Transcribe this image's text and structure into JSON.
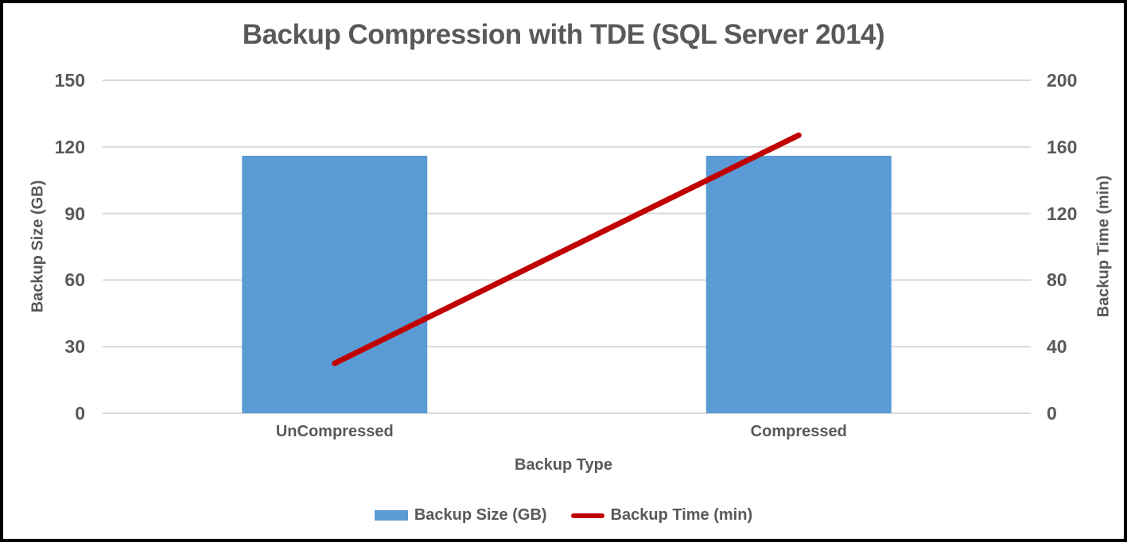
{
  "title": "Backup Compression with TDE (SQL Server 2014)",
  "colors": {
    "bar": "#5B9BD5",
    "line": "#C00000",
    "text": "#595959",
    "gridline": "#D9D9D9"
  },
  "chart_data": {
    "type": "bar+line",
    "title": "Backup Compression with TDE (SQL Server 2014)",
    "categories": [
      "UnCompressed",
      "Compressed"
    ],
    "series": [
      {
        "name": "Backup Size (GB)",
        "type": "bar",
        "axis": "left",
        "values": [
          116,
          116
        ]
      },
      {
        "name": "Backup Time (min)",
        "type": "line",
        "axis": "right",
        "values": [
          30,
          167
        ]
      }
    ],
    "x_axis": {
      "title": "Backup Type"
    },
    "left_axis": {
      "title": "Backup Size (GB)",
      "min": 0,
      "max": 150,
      "ticks": [
        0,
        30,
        60,
        90,
        120,
        150
      ]
    },
    "right_axis": {
      "title": "Backup Time (min)",
      "min": 0,
      "max": 200,
      "ticks": [
        0,
        40,
        80,
        120,
        160,
        200
      ]
    },
    "grid": true,
    "legend_position": "bottom"
  }
}
